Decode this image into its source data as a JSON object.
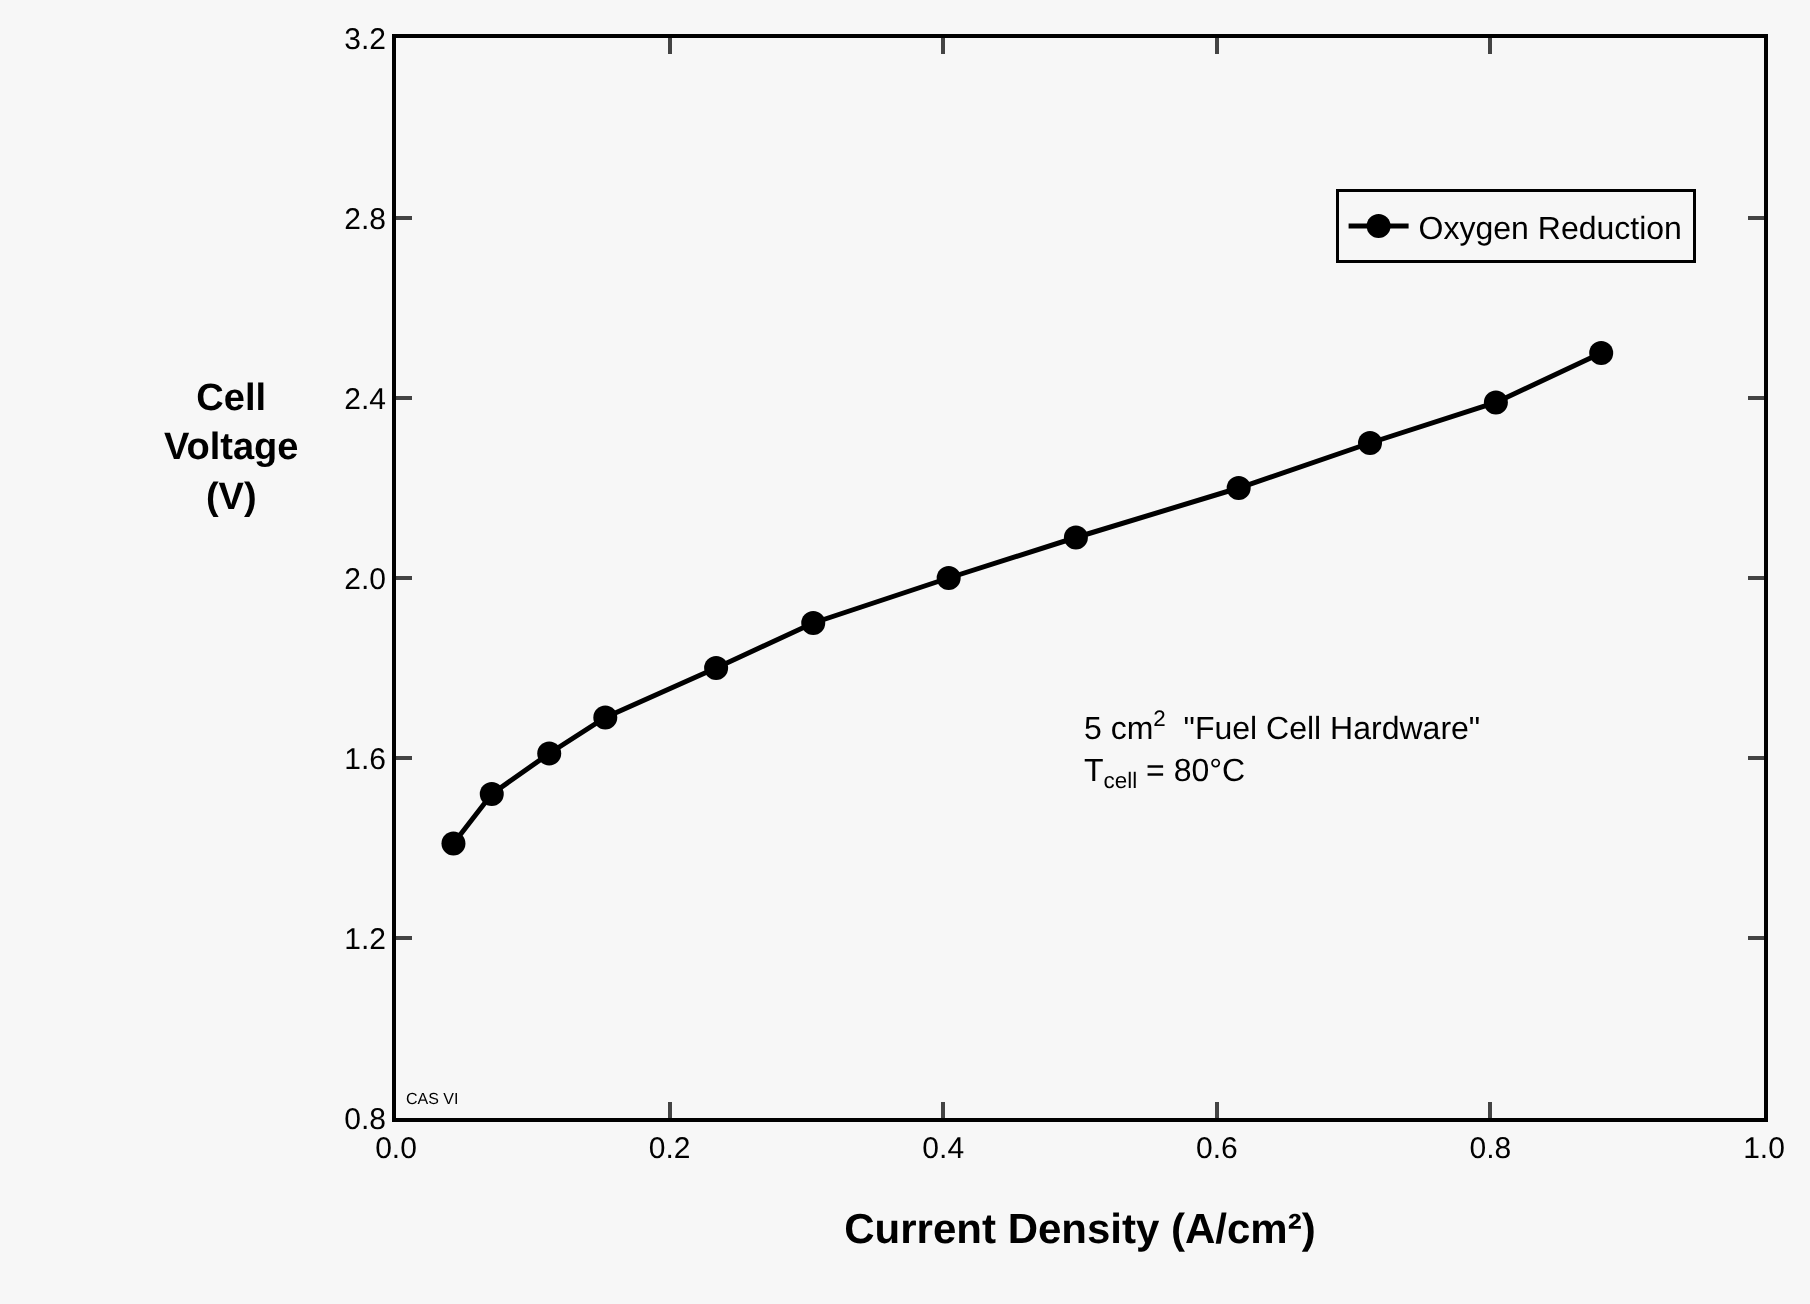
{
  "chart_data": {
    "type": "line",
    "xlabel": "Current Density (A/cm²)",
    "ylabel": "Cell\nVoltage\n(V)",
    "x": [
      0.042,
      0.07,
      0.112,
      0.153,
      0.234,
      0.305,
      0.404,
      0.497,
      0.616,
      0.712,
      0.804,
      0.881
    ],
    "series": [
      {
        "name": "Oxygen Reduction",
        "color": "#000000",
        "values": [
          1.41,
          1.52,
          1.61,
          1.69,
          1.8,
          1.9,
          2.0,
          2.09,
          2.2,
          2.3,
          2.39,
          2.5
        ]
      }
    ],
    "xlim": [
      0.0,
      1.0
    ],
    "xticks": [
      "0.0",
      0.2,
      0.4,
      0.6,
      0.8,
      "1.0"
    ],
    "ylim": [
      0.8,
      3.2
    ],
    "yticks": [
      0.8,
      1.2,
      1.6,
      "2.0",
      2.4,
      2.8,
      3.2
    ],
    "annotations": [
      "5 cm$^{2}$  \"Fuel Cell Hardware\"\nT$_{cell}$ = 80°C",
      "CAS VI"
    ],
    "legend": "top right",
    "marker": "circle",
    "line_style": "solid",
    "grid": false
  }
}
